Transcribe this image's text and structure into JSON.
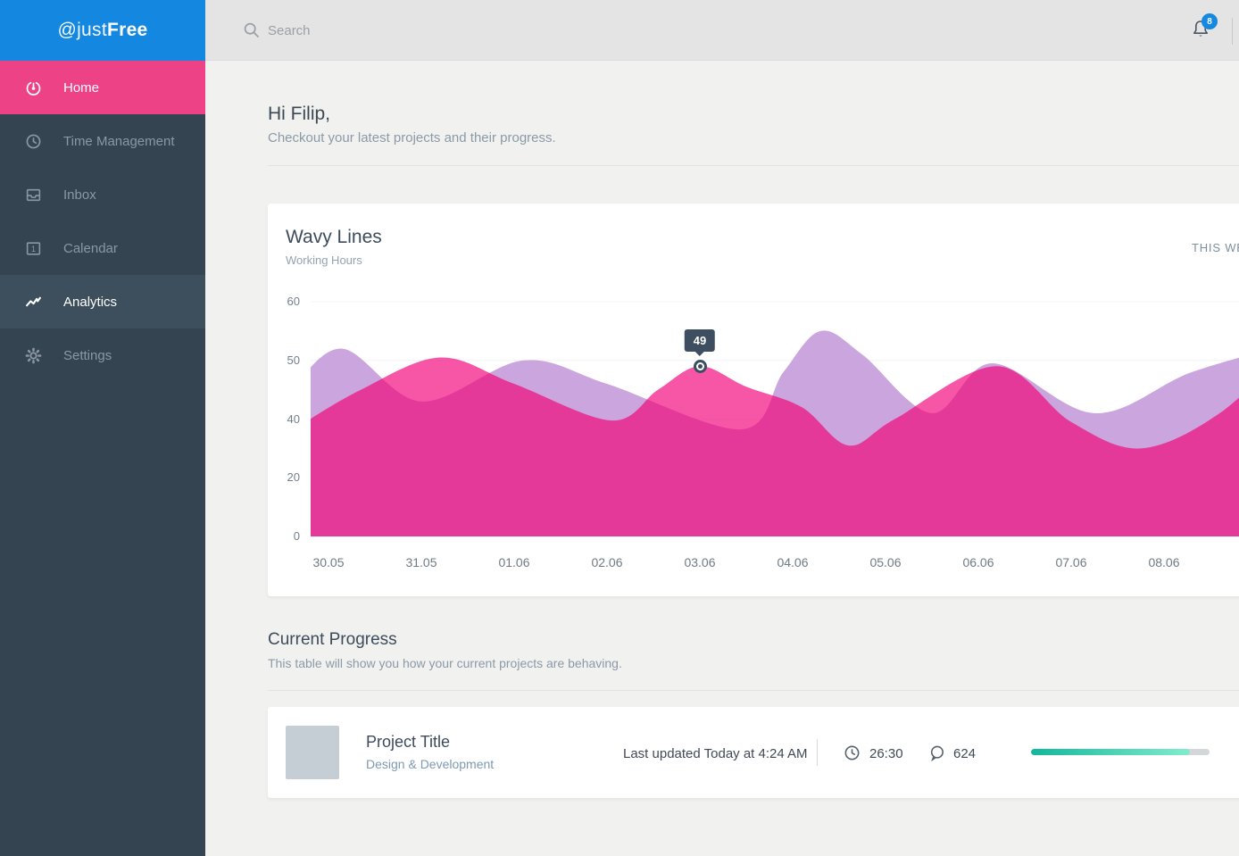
{
  "brand": {
    "prefix": "@just",
    "bold": "Free"
  },
  "sidebar": {
    "items": [
      {
        "label": "Home",
        "icon": "gauge-icon",
        "state": "selected"
      },
      {
        "label": "Time Management",
        "icon": "clock-icon",
        "state": "default"
      },
      {
        "label": "Inbox",
        "icon": "inbox-icon",
        "state": "default"
      },
      {
        "label": "Calendar",
        "icon": "calendar-icon",
        "state": "default"
      },
      {
        "label": "Analytics",
        "icon": "chart-line-icon",
        "state": "active"
      },
      {
        "label": "Settings",
        "icon": "gear-icon",
        "state": "default"
      }
    ]
  },
  "topbar": {
    "search_placeholder": "Search",
    "notifications_count": "8"
  },
  "greeting": {
    "title": "Hi Filip,",
    "subtitle": "Checkout your latest projects and their progress."
  },
  "chart_card": {
    "title": "Wavy Lines",
    "subtitle": "Working Hours",
    "period_label": "THIS WEEK"
  },
  "chart_data": {
    "type": "area",
    "title": "Wavy Lines",
    "subtitle": "Working Hours",
    "categories": [
      "30.05",
      "31.05",
      "01.06",
      "02.06",
      "03.06",
      "04.06",
      "05.06",
      "06.06",
      "07.06",
      "08.06"
    ],
    "y_ticks": [
      0,
      20,
      40,
      50,
      60
    ],
    "grid": true,
    "legend": false,
    "series": [
      {
        "name": "purple-series",
        "color": "#cba6de",
        "opacity": 1,
        "values": [
          51,
          43,
          50,
          46,
          39,
          52,
          44,
          49,
          42,
          48
        ],
        "render_points": [
          [
            -0.4,
            45
          ],
          [
            0.15,
            52
          ],
          [
            1.0,
            43
          ],
          [
            2.1,
            50
          ],
          [
            3.0,
            46
          ],
          [
            4.45,
            36.5
          ],
          [
            4.9,
            48
          ],
          [
            5.3,
            55
          ],
          [
            5.75,
            51
          ],
          [
            6.5,
            41
          ],
          [
            7.15,
            49.5
          ],
          [
            8.25,
            41
          ],
          [
            9.3,
            48
          ],
          [
            10.4,
            53
          ]
        ]
      },
      {
        "name": "pink-series",
        "color": "#f2067a",
        "opacity": 0.68,
        "values": [
          40,
          50,
          46,
          40,
          49,
          44,
          40,
          48,
          39,
          41
        ],
        "render_points": [
          [
            -0.3,
            38
          ],
          [
            0.35,
            45
          ],
          [
            1.2,
            50.5
          ],
          [
            2.0,
            46
          ],
          [
            3.05,
            39.5
          ],
          [
            3.55,
            45
          ],
          [
            4.0,
            49
          ],
          [
            4.5,
            45.5
          ],
          [
            5.1,
            42
          ],
          [
            5.6,
            31
          ],
          [
            6.1,
            40
          ],
          [
            7.2,
            49
          ],
          [
            8.0,
            39
          ],
          [
            8.75,
            30
          ],
          [
            9.6,
            41
          ],
          [
            10.4,
            53
          ]
        ]
      }
    ],
    "annotation": {
      "label": "49",
      "value": 49,
      "x_index": 4,
      "series": "pink-series"
    }
  },
  "progress_section": {
    "title": "Current Progress",
    "subtitle": "This table will show you how your current projects are behaving."
  },
  "project": {
    "title": "Project Title",
    "category": "Design & Development",
    "last_updated": "Last updated Today at 4:24 AM",
    "time": "26:30",
    "comments": "624",
    "progress_percent": 89
  },
  "colors": {
    "brand_blue": "#1487e0",
    "accent_pink": "#ed4386",
    "sidebar_bg": "#344551",
    "active_item_bg": "#3d4f5c",
    "tooltip_bg": "#3e4e61",
    "progress_gradient": [
      "#12b79b",
      "#82eccd"
    ],
    "progress_track": "#d4d7d9",
    "badge_blue": "#1588e0"
  }
}
